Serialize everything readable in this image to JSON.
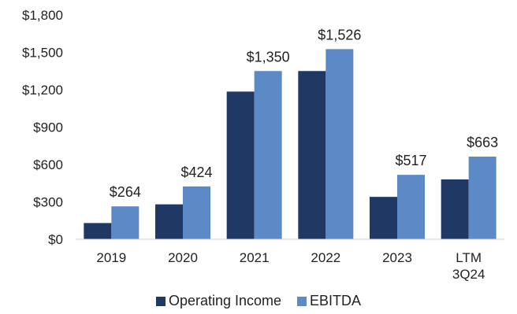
{
  "chart_data": {
    "type": "bar",
    "categories": [
      "2019",
      "2020",
      "2021",
      "2022",
      "2023",
      "LTM 3Q24"
    ],
    "series": [
      {
        "name": "Operating Income",
        "values": [
          130,
          280,
          1185,
          1350,
          340,
          480
        ],
        "color": "#1f3864"
      },
      {
        "name": "EBITDA",
        "values": [
          264,
          424,
          1350,
          1526,
          517,
          663
        ],
        "color": "#5b8ac6"
      }
    ],
    "data_labels": [
      "$264",
      "$424",
      "$1,350",
      "$1,526",
      "$517",
      "$663"
    ],
    "y_ticks": [
      "$0",
      "$300",
      "$600",
      "$900",
      "$1,200",
      "$1,500",
      "$1,800"
    ],
    "ylim": [
      0,
      1800
    ],
    "grid": false,
    "legend_position": "bottom"
  }
}
